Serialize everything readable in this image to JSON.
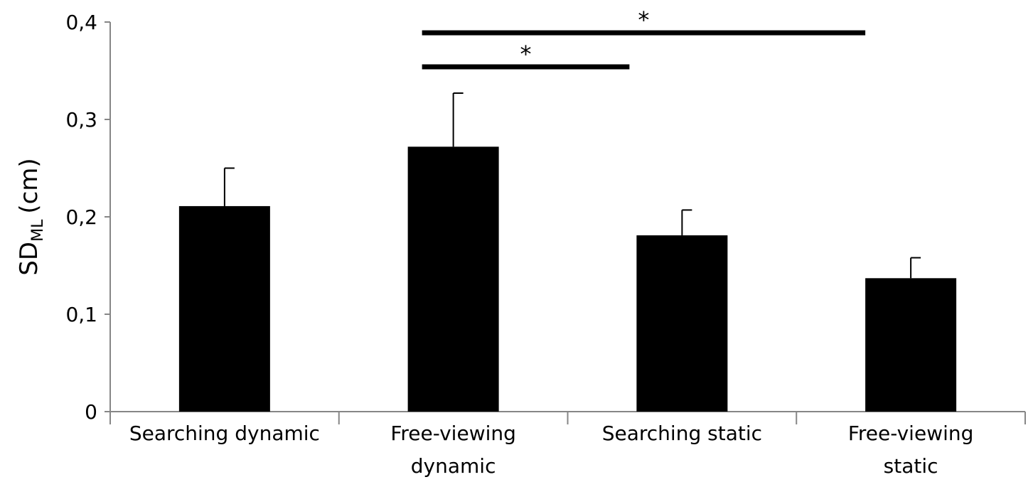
{
  "chart_data": {
    "type": "bar",
    "title": "",
    "xlabel": "",
    "ylabel": {
      "main": "SD",
      "subscript": "ML",
      "unit": "(cm)"
    },
    "ylim": [
      0,
      0.4
    ],
    "yticks": [
      {
        "value": 0,
        "label": "0"
      },
      {
        "value": 0.1,
        "label": "0,1"
      },
      {
        "value": 0.2,
        "label": "0,2"
      },
      {
        "value": 0.3,
        "label": "0,3"
      },
      {
        "value": 0.4,
        "label": "0,4"
      }
    ],
    "categories": [
      [
        "Searching dynamic"
      ],
      [
        "Free-viewing",
        "dynamic"
      ],
      [
        "Searching static"
      ],
      [
        "Free-viewing",
        "static"
      ]
    ],
    "values": [
      0.211,
      0.272,
      0.181,
      0.137
    ],
    "errors": [
      0.039,
      0.055,
      0.026,
      0.021
    ],
    "significance": [
      {
        "from": 1,
        "to": 2,
        "y": 0.354,
        "label": "*"
      },
      {
        "from": 1,
        "to": 3,
        "y": 0.389,
        "label": "*"
      }
    ],
    "grid": false,
    "colors": {
      "bar": "#000000",
      "axis": "#868686"
    }
  }
}
